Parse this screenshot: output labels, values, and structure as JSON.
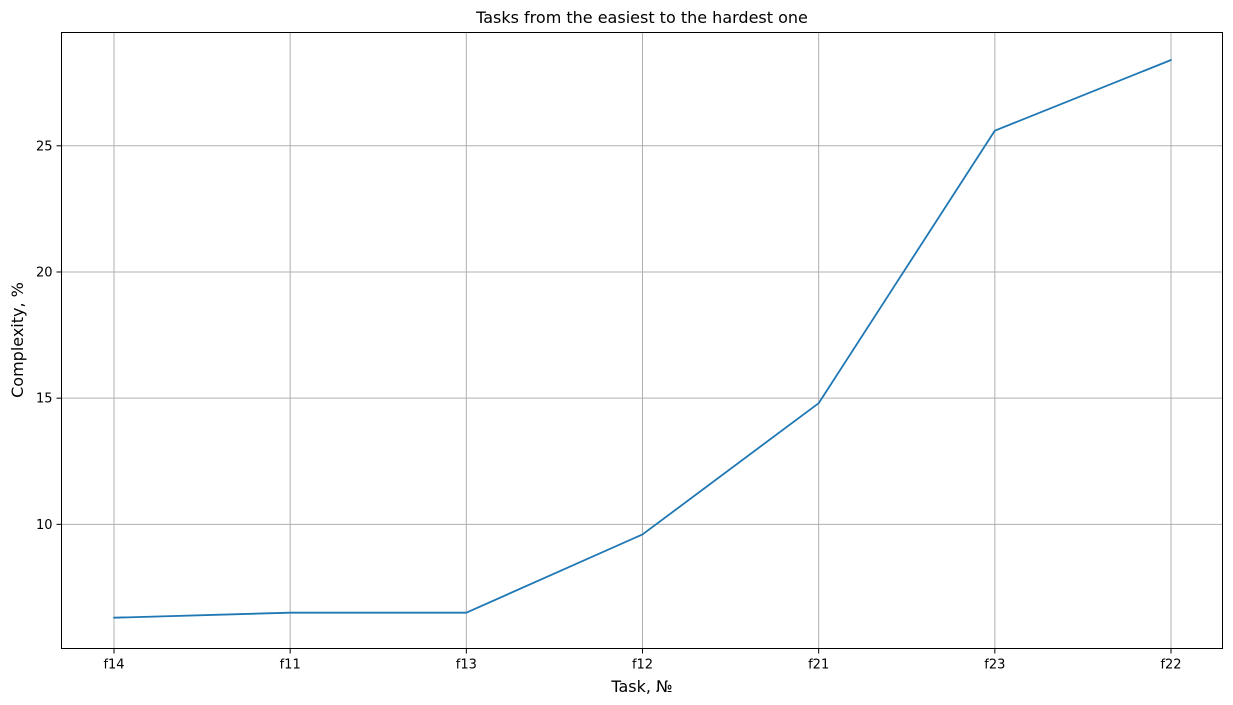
{
  "chart_data": {
    "type": "line",
    "title": "Tasks from the easiest to the hardest one",
    "xlabel": "Task, №",
    "ylabel": "Complexity, %",
    "categories": [
      "f14",
      "f11",
      "f13",
      "f12",
      "f21",
      "f23",
      "f22"
    ],
    "series": [
      {
        "values": [
          6.3,
          6.5,
          6.5,
          9.6,
          14.8,
          25.6,
          28.4
        ],
        "color": "#1f77b4"
      }
    ],
    "ylim": [
      5.08,
      29.49
    ],
    "yticks": [
      10,
      15,
      20,
      25
    ],
    "grid": true
  }
}
